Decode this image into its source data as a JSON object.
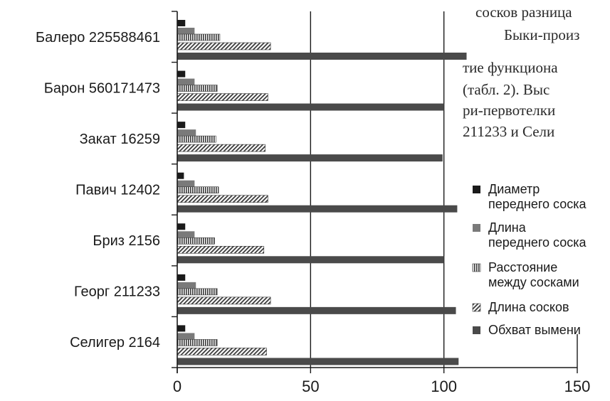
{
  "background_text": {
    "lines": [
      "сосков разница",
      "Быки-произ",
      "тие функциона",
      "(табл. 2). Выс",
      "ри-первотелки",
      "211233 и Сели"
    ]
  },
  "chart_data": {
    "type": "bar",
    "orientation": "horizontal",
    "categories": [
      "Балеро 225588461",
      "Барон 560171473",
      "Закат 16259",
      "Павич 12402",
      "Бриз 2156",
      "Георг 211233",
      "Селигер 2164"
    ],
    "series": [
      {
        "name": "Диаметр переднего соска",
        "values": [
          3,
          3,
          3,
          2.5,
          3,
          3,
          3
        ],
        "color": "#1a1a1a",
        "pattern": "solid-black"
      },
      {
        "name": "Длина переднего соска",
        "values": [
          6.5,
          6.5,
          7,
          6.5,
          6.5,
          7,
          6.5
        ],
        "color": "#7a7a7a",
        "pattern": "solid-gray"
      },
      {
        "name": "Расстояние между сосками",
        "values": [
          16,
          15,
          14.5,
          15.5,
          14,
          15,
          15
        ],
        "color": "#555555",
        "pattern": "vertical-lines"
      },
      {
        "name": "Длина сосков",
        "values": [
          35,
          34,
          33,
          34,
          32.5,
          35,
          33.5
        ],
        "color": "#555555",
        "pattern": "diagonal-lines"
      },
      {
        "name": "Обхват вымени",
        "values": [
          108.5,
          100,
          99.5,
          105,
          100,
          104.5,
          105.5
        ],
        "color": "#4a4a4a",
        "pattern": "solid-dark"
      }
    ],
    "xticks": [
      "0",
      "50",
      "100",
      "150"
    ],
    "xlim": [
      0,
      150
    ],
    "grid": "vertical",
    "legend_position": "right"
  }
}
